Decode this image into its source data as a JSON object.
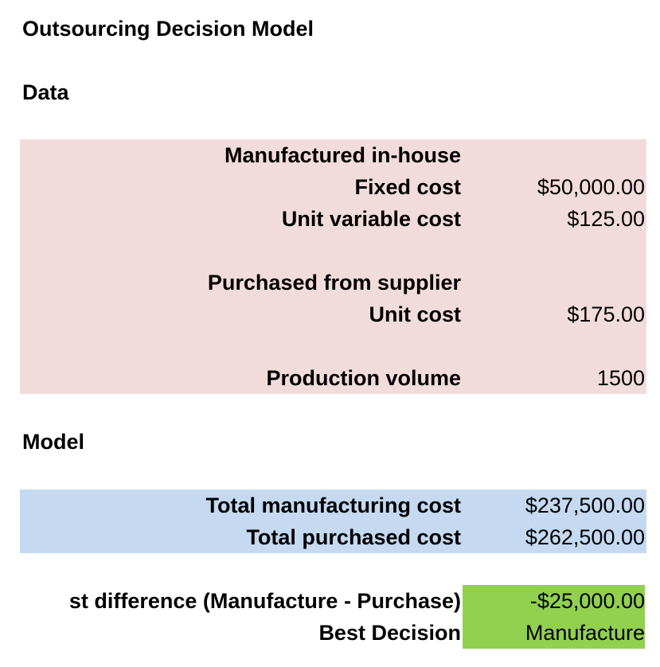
{
  "title": "Outsourcing Decision Model",
  "data_section": {
    "heading": "Data",
    "manufactured_heading": "Manufactured in-house",
    "fixed_cost_label": "Fixed cost",
    "fixed_cost_value": "$50,000.00",
    "unit_variable_cost_label": "Unit variable cost",
    "unit_variable_cost_value": "$125.00",
    "purchased_heading": "Purchased from supplier",
    "unit_cost_label": "Unit cost",
    "unit_cost_value": "$175.00",
    "production_volume_label": "Production volume",
    "production_volume_value": "1500"
  },
  "model_section": {
    "heading": "Model",
    "total_manufacturing_cost_label": "Total manufacturing cost",
    "total_manufacturing_cost_value": "$237,500.00",
    "total_purchased_cost_label": "Total purchased cost",
    "total_purchased_cost_value": "$262,500.00",
    "cost_difference_label": "st difference (Manufacture - Purchase)",
    "cost_difference_value": "-$25,000.00",
    "best_decision_label": "Best Decision",
    "best_decision_value": "Manufacture"
  },
  "colors": {
    "data_fill": "#f2dcdb",
    "model_fill": "#c5d9f1",
    "result_fill": "#92d050"
  }
}
